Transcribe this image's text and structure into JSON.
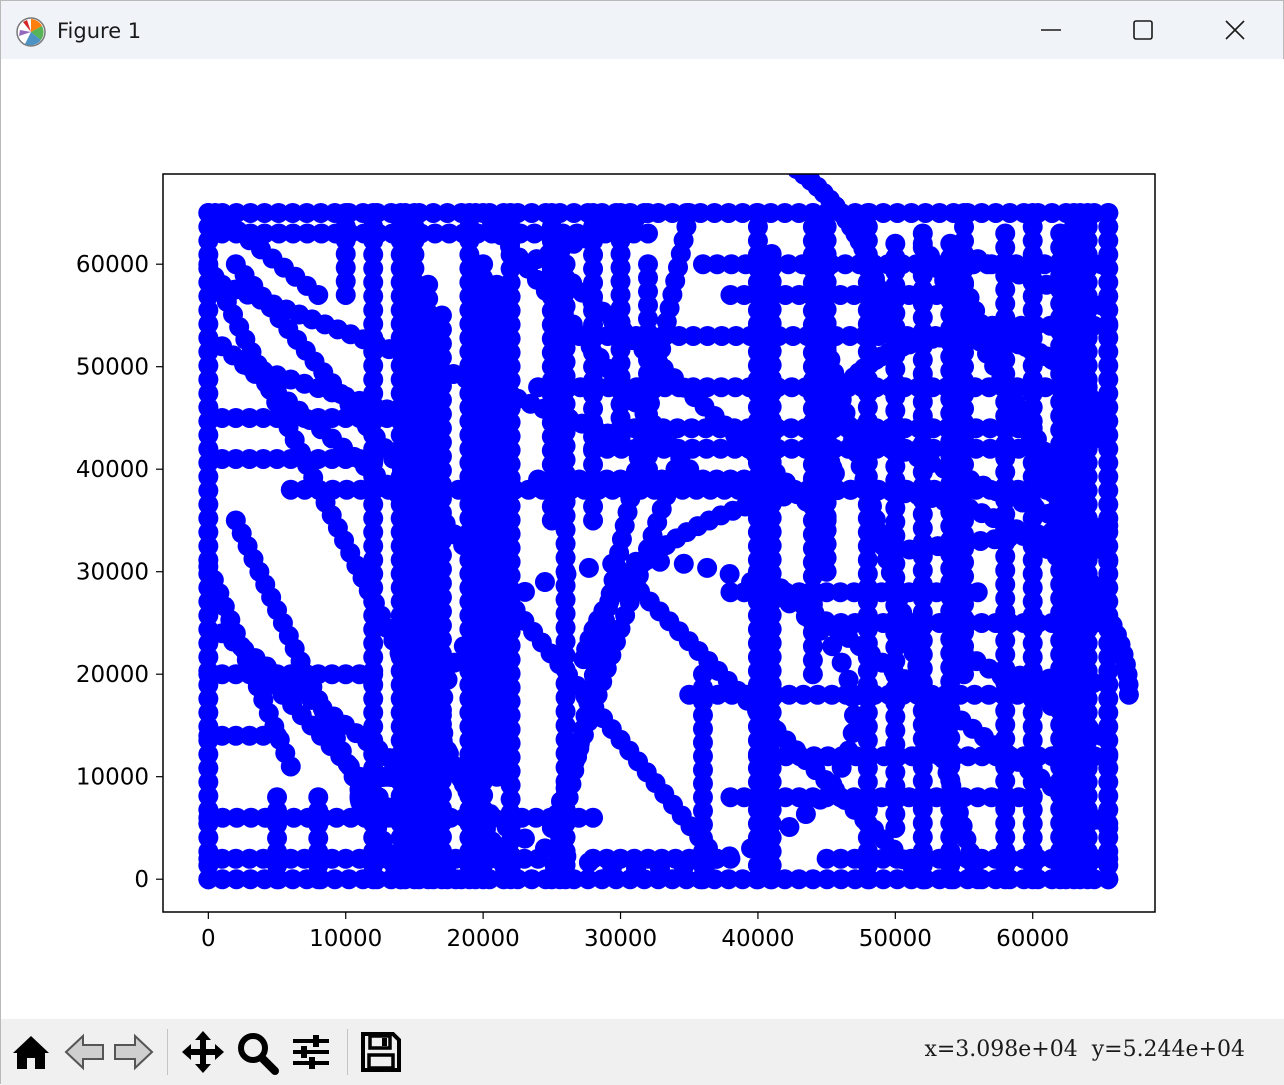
{
  "window": {
    "title": "Figure 1",
    "icon": "matplotlib-logo-icon",
    "controls": [
      "minimize-icon",
      "maximize-icon",
      "close-icon"
    ]
  },
  "chart_data": {
    "type": "scatter",
    "title": "",
    "xlabel": "",
    "ylabel": "",
    "xlim": [
      -3300,
      68900
    ],
    "ylim": [
      -3200,
      68800
    ],
    "xticks": [
      0,
      10000,
      20000,
      30000,
      40000,
      50000,
      60000
    ],
    "xtick_labels": [
      "0",
      "10000",
      "20000",
      "30000",
      "40000",
      "50000",
      "60000"
    ],
    "yticks": [
      0,
      10000,
      20000,
      30000,
      40000,
      50000,
      60000
    ],
    "ytick_labels": [
      "0",
      "10000",
      "20000",
      "30000",
      "40000",
      "50000",
      "60000"
    ],
    "grid": false,
    "marker": "circle",
    "color": "#0000ff",
    "series": [
      {
        "segments": [
          [
            [
              0,
              65000
            ],
            [
              65500,
              65000
            ]
          ],
          [
            [
              0,
              0
            ],
            [
              65500,
              0
            ]
          ],
          [
            [
              0,
              0
            ],
            [
              0,
              65000
            ]
          ],
          [
            [
              65500,
              0
            ],
            [
              65500,
              65000
            ]
          ],
          [
            [
              500,
              65000
            ],
            [
              8000,
              57000
            ]
          ],
          [
            [
              0,
              60000
            ],
            [
              22000,
              0
            ]
          ],
          [
            [
              2000,
              60000
            ],
            [
              37000,
              2000
            ]
          ],
          [
            [
              1000,
              52000
            ],
            [
              17000,
              34000
            ]
          ],
          [
            [
              3000,
              50000
            ],
            [
              15000,
              45000
            ]
          ],
          [
            [
              1000,
              45000
            ],
            [
              13000,
              45000
            ]
          ],
          [
            [
              1000,
              41000
            ],
            [
              12000,
              41000
            ]
          ],
          [
            [
              6000,
              38000
            ],
            [
              62000,
              38000
            ]
          ],
          [
            [
              2000,
              35000
            ],
            [
              14000,
              0
            ]
          ],
          [
            [
              0,
              30500
            ],
            [
              6000,
              11000
            ]
          ],
          [
            [
              1000,
              24000
            ],
            [
              14000,
              11000
            ]
          ],
          [
            [
              0,
              20000
            ],
            [
              12000,
              20000
            ]
          ],
          [
            [
              0,
              14000
            ],
            [
              5000,
              14000
            ]
          ],
          [
            [
              0,
              6000
            ],
            [
              28000,
              6000
            ]
          ],
          [
            [
              0,
              2000
            ],
            [
              24000,
              2000
            ]
          ],
          [
            [
              4000,
              20000
            ],
            [
              18000,
              0
            ]
          ],
          [
            [
              1000,
              58000
            ],
            [
              30000,
              43000
            ]
          ],
          [
            [
              1000,
              63000
            ],
            [
              32000,
              63000
            ]
          ],
          [
            [
              10000,
              65000
            ],
            [
              10000,
              57000
            ]
          ],
          [
            [
              12000,
              65000
            ],
            [
              12000,
              0
            ]
          ],
          [
            [
              14000,
              65000
            ],
            [
              14000,
              0
            ]
          ],
          [
            [
              15000,
              65000
            ],
            [
              15000,
              0
            ]
          ],
          [
            [
              16000,
              58000
            ],
            [
              16000,
              0
            ]
          ],
          [
            [
              17000,
              55000
            ],
            [
              17000,
              0
            ]
          ],
          [
            [
              19000,
              65000
            ],
            [
              19000,
              0
            ]
          ],
          [
            [
              20000,
              60000
            ],
            [
              20000,
              0
            ]
          ],
          [
            [
              21000,
              58000
            ],
            [
              21000,
              10000
            ]
          ],
          [
            [
              22000,
              65000
            ],
            [
              22000,
              1000
            ]
          ],
          [
            [
              23000,
              60000
            ],
            [
              32000,
              65000
            ]
          ],
          [
            [
              25000,
              65000
            ],
            [
              25000,
              35000
            ]
          ],
          [
            [
              26000,
              60000
            ],
            [
              26000,
              0
            ]
          ],
          [
            [
              28000,
              65000
            ],
            [
              28000,
              35000
            ]
          ],
          [
            [
              20000,
              65000
            ],
            [
              35000,
              40000
            ]
          ],
          [
            [
              30000,
              65000
            ],
            [
              30000,
              45000
            ]
          ],
          [
            [
              32000,
              60000
            ],
            [
              32000,
              40000
            ]
          ],
          [
            [
              35000,
              65000
            ],
            [
              25000,
              0
            ]
          ],
          [
            [
              36000,
              60000
            ],
            [
              65000,
              60000
            ]
          ],
          [
            [
              38000,
              57000
            ],
            [
              55000,
              57000
            ]
          ],
          [
            [
              27000,
              53000
            ],
            [
              55000,
              53000
            ]
          ],
          [
            [
              24000,
              48000
            ],
            [
              64000,
              48000
            ]
          ],
          [
            [
              28000,
              42000
            ],
            [
              60000,
              42000
            ]
          ],
          [
            [
              24000,
              39000
            ],
            [
              40000,
              39000
            ]
          ],
          [
            [
              30000,
              44000
            ],
            [
              60000,
              44000
            ]
          ],
          [
            [
              44000,
              65000
            ],
            [
              44000,
              20000
            ]
          ],
          [
            [
              40000,
              65000
            ],
            [
              40000,
              0
            ]
          ],
          [
            [
              45000,
              65000
            ],
            [
              45000,
              30000
            ]
          ],
          [
            [
              41000,
              61000
            ],
            [
              41000,
              0
            ]
          ],
          [
            [
              48000,
              65000
            ],
            [
              48000,
              0
            ]
          ],
          [
            [
              50000,
              62000
            ],
            [
              50000,
              5000
            ]
          ],
          [
            [
              52000,
              63000
            ],
            [
              52000,
              0
            ]
          ],
          [
            [
              54000,
              62000
            ],
            [
              54000,
              0
            ]
          ],
          [
            [
              55000,
              65000
            ],
            [
              55000,
              20000
            ]
          ],
          [
            [
              58000,
              63000
            ],
            [
              58000,
              0
            ]
          ],
          [
            [
              60000,
              65000
            ],
            [
              60000,
              0
            ]
          ],
          [
            [
              62000,
              63000
            ],
            [
              62000,
              0
            ]
          ],
          [
            [
              63000,
              65000
            ],
            [
              63000,
              0
            ]
          ],
          [
            [
              64000,
              65000
            ],
            [
              64000,
              0
            ]
          ],
          [
            [
              45000,
              52000
            ],
            [
              56000,
              0
            ]
          ],
          [
            [
              52000,
              62000
            ],
            [
              65500,
              31000
            ]
          ],
          [
            [
              55000,
              58000
            ],
            [
              65500,
              25000
            ]
          ],
          [
            [
              55000,
              61000
            ],
            [
              65000,
              56000
            ]
          ],
          [
            [
              56000,
              54000
            ],
            [
              65500,
              54000
            ]
          ],
          [
            [
              50000,
              32000
            ],
            [
              65500,
              34500
            ]
          ],
          [
            [
              38000,
              28000
            ],
            [
              56000,
              28000
            ]
          ],
          [
            [
              44000,
              25000
            ],
            [
              65500,
              25000
            ]
          ],
          [
            [
              35000,
              18000
            ],
            [
              62000,
              18000
            ]
          ],
          [
            [
              40000,
              12000
            ],
            [
              65500,
              12000
            ]
          ],
          [
            [
              38000,
              8000
            ],
            [
              60000,
              8000
            ]
          ],
          [
            [
              45000,
              2000
            ],
            [
              65500,
              2000
            ]
          ],
          [
            [
              40000,
              30000
            ],
            [
              65500,
              5000
            ]
          ],
          [
            [
              30000,
              30000
            ],
            [
              52000,
              0
            ]
          ],
          [
            [
              58000,
              20000
            ],
            [
              65500,
              19000
            ]
          ],
          [
            [
              55000,
              22000
            ],
            [
              65000,
              14000
            ]
          ],
          [
            [
              45000,
              45000
            ],
            [
              64000,
              34000
            ]
          ],
          [
            [
              34000,
              40000
            ],
            [
              25000,
              5000
            ]
          ],
          [
            [
              36000,
              20000
            ],
            [
              36000,
              0
            ]
          ],
          [
            [
              5000,
              0
            ],
            [
              5000,
              8000
            ]
          ],
          [
            [
              8000,
              8000
            ],
            [
              8000,
              0
            ]
          ],
          [
            [
              28000,
              2000
            ],
            [
              38000,
              2000
            ]
          ],
          [
            [
              25000,
              60000
            ],
            [
              45000,
              35000
            ]
          ]
        ]
      },
      {
        "curves": [
          [
            [
              13000,
              8000
            ],
            [
              2000,
              -10000
            ]
          ],
          [
            [
              47000,
              18000
            ],
            [
              20000,
              170
            ]
          ],
          [
            [
              32000,
              16000
            ],
            [
              15000,
              -10000
            ]
          ],
          [
            [
              27000,
              54000
            ],
            [
              22000,
              -120
            ]
          ],
          [
            [
              55000,
              43000
            ],
            [
              10000,
              200
            ]
          ]
        ]
      }
    ]
  },
  "toolbar": {
    "buttons": [
      {
        "name": "home-icon",
        "label": "Home"
      },
      {
        "name": "back-arrow-icon",
        "label": "Back"
      },
      {
        "name": "forward-arrow-icon",
        "label": "Forward"
      },
      {
        "name": "pan-icon",
        "label": "Pan"
      },
      {
        "name": "zoom-icon",
        "label": "Zoom"
      },
      {
        "name": "configure-subplots-icon",
        "label": "Subplots"
      },
      {
        "name": "save-icon",
        "label": "Save"
      }
    ],
    "coords": "x=3.098e+04  y=5.244e+04"
  }
}
